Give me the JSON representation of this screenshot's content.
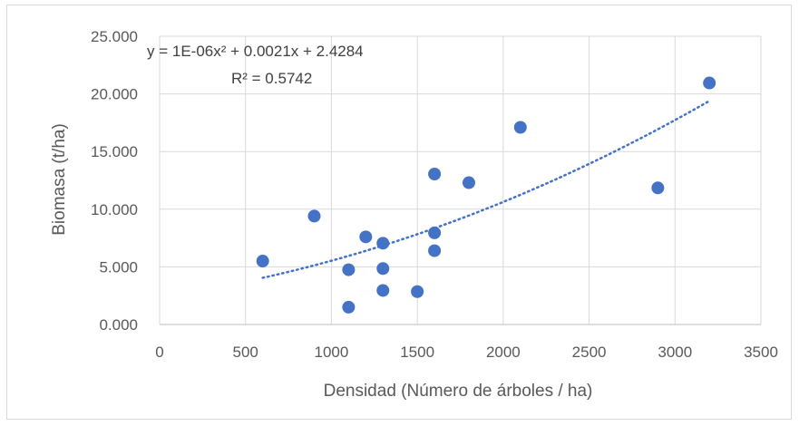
{
  "chart_data": {
    "type": "scatter",
    "title": "",
    "xlabel": "Densidad (Número de árboles / ha)",
    "ylabel": "Biomasa (t/ha)",
    "xlim": [
      0,
      3500
    ],
    "ylim": [
      0,
      25
    ],
    "x_ticks": [
      0,
      500,
      1000,
      1500,
      2000,
      2500,
      3000,
      3500
    ],
    "x_tick_labels": [
      "0",
      "500",
      "1000",
      "1500",
      "2000",
      "2500",
      "3000",
      "3500"
    ],
    "y_ticks": [
      0,
      5,
      10,
      15,
      20,
      25
    ],
    "y_tick_labels": [
      "0.000",
      "5.000",
      "10.000",
      "15.000",
      "20.000",
      "25.000"
    ],
    "grid": true,
    "legend": "none",
    "marker_color": "#4472c4",
    "points": [
      {
        "x": 600,
        "y": 5.5
      },
      {
        "x": 900,
        "y": 9.4
      },
      {
        "x": 1100,
        "y": 4.75
      },
      {
        "x": 1100,
        "y": 1.5
      },
      {
        "x": 1200,
        "y": 7.6
      },
      {
        "x": 1300,
        "y": 7.05
      },
      {
        "x": 1300,
        "y": 4.85
      },
      {
        "x": 1300,
        "y": 2.95
      },
      {
        "x": 1500,
        "y": 2.85
      },
      {
        "x": 1600,
        "y": 13.05
      },
      {
        "x": 1600,
        "y": 7.95
      },
      {
        "x": 1600,
        "y": 6.4
      },
      {
        "x": 1800,
        "y": 12.3
      },
      {
        "x": 2100,
        "y": 17.1
      },
      {
        "x": 2900,
        "y": 11.85
      },
      {
        "x": 3200,
        "y": 20.95
      }
    ],
    "trendline": {
      "type": "polynomial",
      "coefficients": {
        "a": 1e-06,
        "b": 0.0021,
        "c": 2.4284
      },
      "x_range": [
        600,
        3200
      ],
      "style": "dotted",
      "color": "#4472c4"
    },
    "annotations": {
      "equation": "y = 1E-06x² + 0.0021x + 2.4284",
      "r_squared": "R² = 0.5742"
    }
  }
}
